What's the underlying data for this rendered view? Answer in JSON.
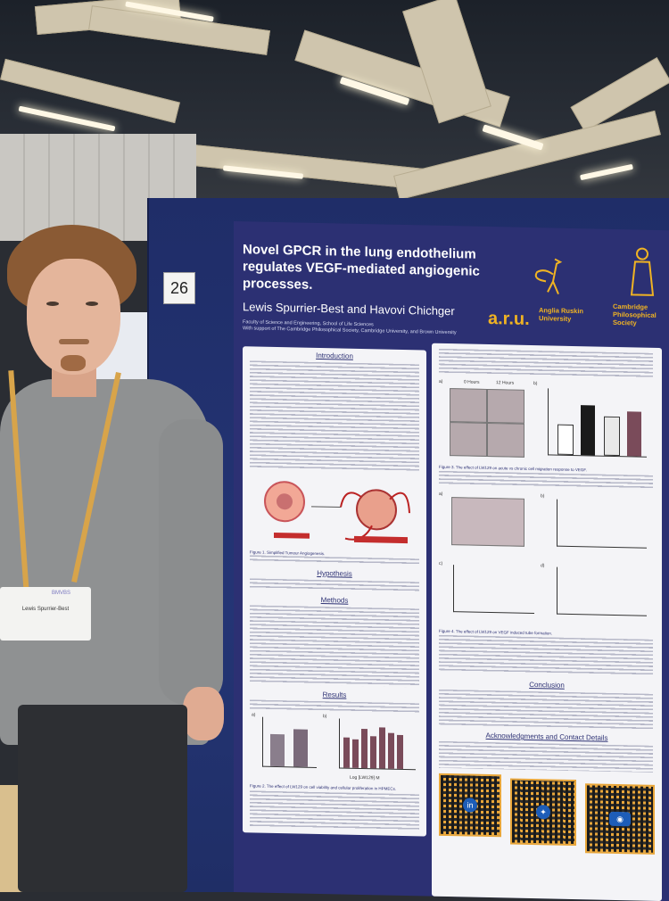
{
  "booth": {
    "number": "26"
  },
  "poster": {
    "title": "Novel GPCR in the lung endothelium regulates VEGF-mediated angiogenic processes.",
    "authors": "Lewis Spurrier-Best and Havovi Chichger",
    "affiliation_1": "Faculty of Science and Engineering, School of Life Sciences",
    "affiliation_2": "With support of The Cambridge Philosophical Society, Cambridge University, and Brown University",
    "aru_logo": "a.r.u.",
    "aru_name": "Anglia Ruskin University",
    "cps_name": "Cambridge Philosophical Society",
    "sections": {
      "introduction": "Introduction",
      "hypothesis": "Hypothesis",
      "methods": "Methods",
      "results": "Results",
      "conclusion": "Conclusion",
      "acknowledgments": "Acknowledgments and Contact Details"
    },
    "labels": {
      "hours_0": "0 Hours",
      "hours_12": "12 Hours",
      "panel_a": "a)",
      "panel_b": "b)",
      "panel_c": "c)",
      "panel_d": "d)",
      "fig1": "Figure 1. Simplified Tumour Angiogenesis.",
      "fig2": "Figure 2. The effect of LW129 on cell viability and cellular proliferation in HPMECs.",
      "fig3": "Figure 3. The effect of LW129 on acute vs chronic cell migration response to VEGF.",
      "fig4": "Figure 4. The effect of LW129 on VEGF induced tube formation.",
      "xaxis_log": "Log [LW129] M"
    }
  },
  "badge": {
    "name": "Lewis Spurrier-Best",
    "org": "BMVBS"
  },
  "icons": {
    "heron": "heron-icon",
    "figure": "scholar-figure-icon",
    "linkedin": "linkedin-icon",
    "bluesky": "butterfly-icon",
    "publons": "profile-icon"
  },
  "colors": {
    "board": "#243575",
    "poster": "#2c3073",
    "accent": "#f0b323"
  }
}
